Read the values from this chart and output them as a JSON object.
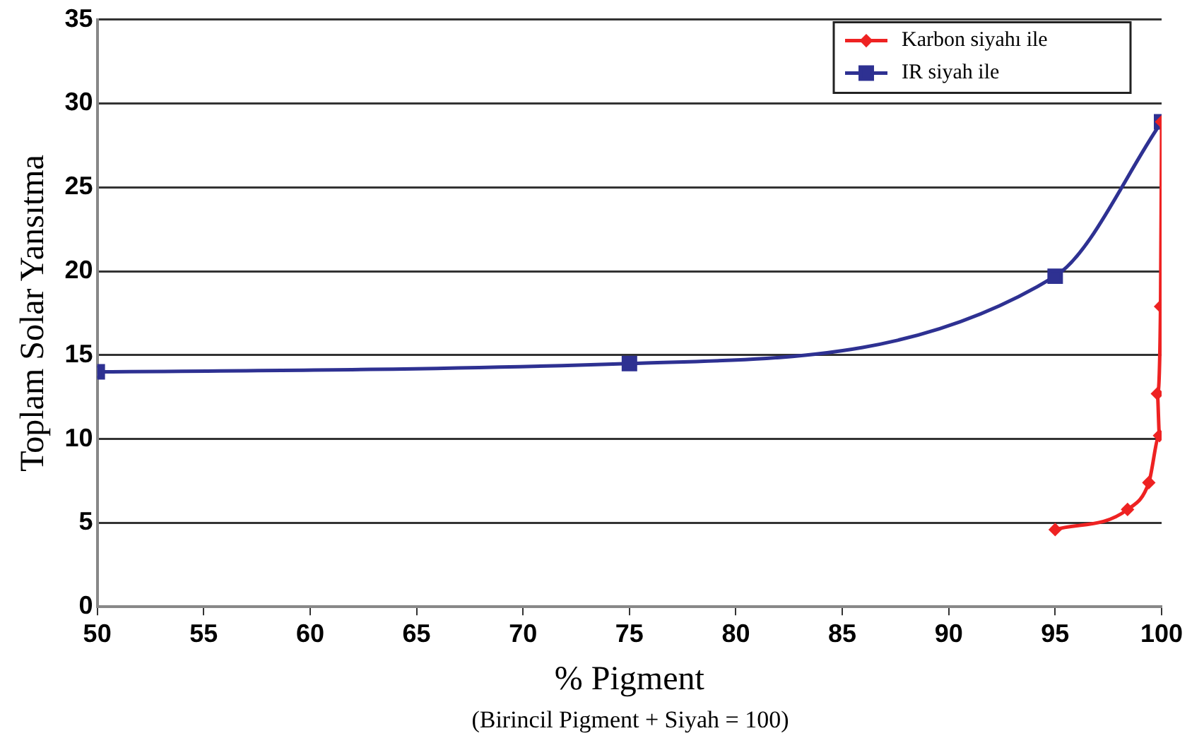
{
  "chart_data": {
    "type": "line",
    "xlabel": "% Pigment",
    "ylabel": "Toplam Solar Yansıtma",
    "annotations": [
      "(Birincil Pigment + Siyah = 100)"
    ],
    "xlim": [
      50,
      100
    ],
    "xticks": [
      50,
      55,
      60,
      65,
      70,
      75,
      80,
      85,
      90,
      95,
      100
    ],
    "ylim": [
      0,
      35
    ],
    "yticks": [
      0,
      5,
      10,
      15,
      20,
      25,
      30,
      35
    ],
    "grid": "y",
    "legend": "top right",
    "line_style": "solid",
    "series": [
      {
        "name": "Karbon siyahı ile",
        "color": "#ee2222",
        "marker": "diamond",
        "x": [
          95,
          98.4,
          99.4,
          99.9,
          99.8,
          99.95,
          100
        ],
        "values": [
          4.6,
          5.8,
          7.4,
          10.2,
          12.7,
          17.9,
          28.9
        ]
      },
      {
        "name": "IR siyah ile",
        "color": "#2e3192",
        "marker": "square",
        "x": [
          50,
          75,
          95,
          100
        ],
        "values": [
          14.0,
          14.5,
          19.7,
          28.9
        ]
      }
    ]
  }
}
